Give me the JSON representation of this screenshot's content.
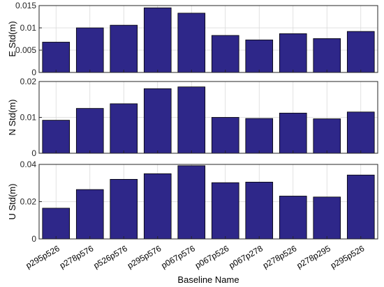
{
  "chart_data": [
    {
      "type": "bar",
      "categories": [
        "p295p526",
        "p278p576",
        "p526p576",
        "p295p576",
        "p067p576",
        "p067p526",
        "p067p278",
        "p278p526",
        "p278p295",
        "p295p526"
      ],
      "values": [
        0.0068,
        0.01,
        0.0106,
        0.0145,
        0.0133,
        0.0083,
        0.0073,
        0.0087,
        0.0076,
        0.0092
      ],
      "ylabel": "E Std(m)",
      "ylim": [
        0,
        0.015
      ],
      "yticks": [
        "0",
        "0.005",
        "0.01",
        "0.015"
      ],
      "grid": true
    },
    {
      "type": "bar",
      "categories": [
        "p295p526",
        "p278p576",
        "p526p576",
        "p295p576",
        "p067p576",
        "p067p526",
        "p067p278",
        "p278p526",
        "p278p295",
        "p295p526"
      ],
      "values": [
        0.0092,
        0.0125,
        0.0138,
        0.018,
        0.0185,
        0.01,
        0.0097,
        0.0112,
        0.0096,
        0.0115
      ],
      "ylabel": "N Std(m)",
      "ylim": [
        0,
        0.02
      ],
      "yticks": [
        "0",
        "0.01",
        "0.02"
      ],
      "grid": true
    },
    {
      "type": "bar",
      "categories": [
        "p295p526",
        "p278p576",
        "p526p576",
        "p295p576",
        "p067p576",
        "p067p526",
        "p067p278",
        "p278p526",
        "p278p295",
        "p295p526"
      ],
      "values": [
        0.0165,
        0.0265,
        0.032,
        0.035,
        0.0393,
        0.0302,
        0.0305,
        0.023,
        0.0225,
        0.0343
      ],
      "ylabel": "U Std(m)",
      "ylim": [
        0,
        0.04
      ],
      "yticks": [
        "0",
        "0.02",
        "0.04"
      ],
      "grid": true,
      "xlabel": "Baseline Name"
    }
  ],
  "colors": {
    "bar_fill": "#2e2789",
    "bar_edge": "#000000",
    "grid": "#d9d9d9",
    "axis": "#262626"
  }
}
